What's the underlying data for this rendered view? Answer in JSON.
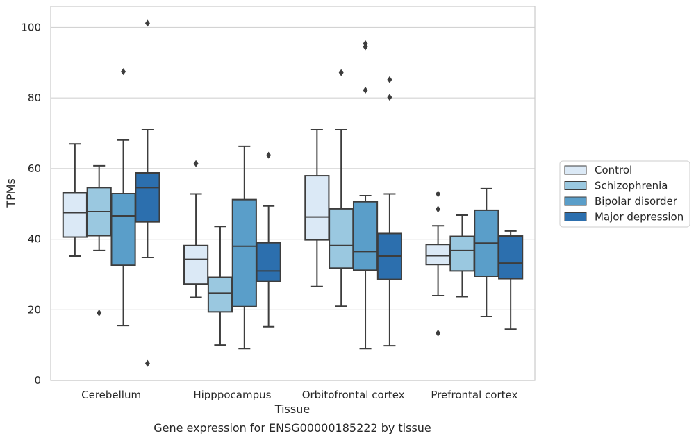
{
  "caption": "Gene expression for ENSG00000185222 by tissue",
  "chart_data": {
    "type": "box",
    "xlabel": "Tissue",
    "ylabel": "TPMs",
    "ylim": [
      0,
      106
    ],
    "yticks": [
      0,
      20,
      40,
      60,
      80,
      100
    ],
    "grid": "horizontal",
    "legend_position": "right",
    "categories": [
      "Cerebellum",
      "Hipppocampus",
      "Orbitofrontal cortex",
      "Prefrontal cortex"
    ],
    "series": [
      {
        "name": "Control",
        "color": "#dbe9f6",
        "boxes": [
          {
            "whisker_low": 35.2,
            "q1": 40.6,
            "median": 47.5,
            "q3": 53.2,
            "whisker_high": 67.0,
            "outliers": []
          },
          {
            "whisker_low": 23.5,
            "q1": 27.3,
            "median": 34.3,
            "q3": 38.2,
            "whisker_high": 52.8,
            "outliers": [
              61.4
            ]
          },
          {
            "whisker_low": 26.6,
            "q1": 39.8,
            "median": 46.3,
            "q3": 58.0,
            "whisker_high": 71.0,
            "outliers": []
          },
          {
            "whisker_low": 24.0,
            "q1": 32.8,
            "median": 35.3,
            "q3": 38.5,
            "whisker_high": 43.8,
            "outliers": [
              52.8,
              48.5,
              13.4
            ]
          }
        ]
      },
      {
        "name": "Schizophrenia",
        "color": "#9ac8e0",
        "boxes": [
          {
            "whisker_low": 36.8,
            "q1": 41.0,
            "median": 47.8,
            "q3": 54.6,
            "whisker_high": 60.8,
            "outliers": [
              19.1
            ]
          },
          {
            "whisker_low": 10.0,
            "q1": 19.4,
            "median": 24.7,
            "q3": 29.2,
            "whisker_high": 43.6,
            "outliers": []
          },
          {
            "whisker_low": 21.0,
            "q1": 31.8,
            "median": 38.2,
            "q3": 48.6,
            "whisker_high": 71.0,
            "outliers": [
              87.2
            ]
          },
          {
            "whisker_low": 23.7,
            "q1": 31.0,
            "median": 36.8,
            "q3": 40.8,
            "whisker_high": 46.8,
            "outliers": []
          }
        ]
      },
      {
        "name": "Bipolar disorder",
        "color": "#5a9ec9",
        "boxes": [
          {
            "whisker_low": 15.5,
            "q1": 32.6,
            "median": 46.6,
            "q3": 52.9,
            "whisker_high": 68.1,
            "outliers": [
              87.5
            ]
          },
          {
            "whisker_low": 9.0,
            "q1": 20.9,
            "median": 38.0,
            "q3": 51.2,
            "whisker_high": 66.3,
            "outliers": []
          },
          {
            "whisker_low": 9.0,
            "q1": 31.2,
            "median": 36.5,
            "q3": 50.6,
            "whisker_high": 52.3,
            "outliers": [
              95.4,
              94.5,
              82.2
            ]
          },
          {
            "whisker_low": 18.1,
            "q1": 29.5,
            "median": 38.9,
            "q3": 48.2,
            "whisker_high": 54.3,
            "outliers": []
          }
        ]
      },
      {
        "name": "Major depression",
        "color": "#2c6fae",
        "boxes": [
          {
            "whisker_low": 34.8,
            "q1": 44.9,
            "median": 54.6,
            "q3": 58.8,
            "whisker_high": 71.0,
            "outliers": [
              101.2,
              4.8
            ]
          },
          {
            "whisker_low": 15.2,
            "q1": 28.0,
            "median": 31.0,
            "q3": 39.0,
            "whisker_high": 49.4,
            "outliers": [
              63.8
            ]
          },
          {
            "whisker_low": 9.8,
            "q1": 28.6,
            "median": 35.2,
            "q3": 41.6,
            "whisker_high": 52.8,
            "outliers": [
              85.2,
              80.2
            ]
          },
          {
            "whisker_low": 14.5,
            "q1": 28.8,
            "median": 33.2,
            "q3": 40.9,
            "whisker_high": 42.3,
            "outliers": []
          }
        ]
      }
    ]
  }
}
